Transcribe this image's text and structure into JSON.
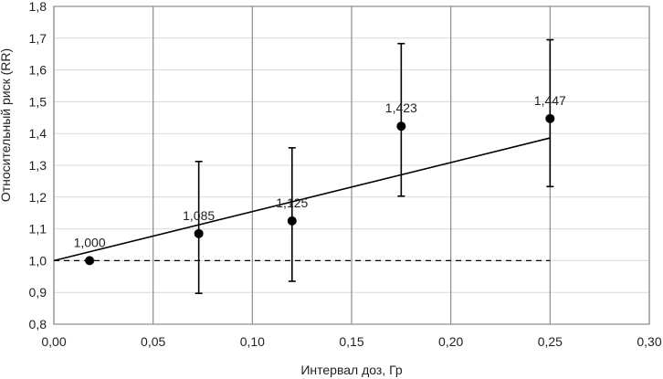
{
  "chart_data": {
    "type": "scatter",
    "xlabel": "Интервал доз, Гр",
    "ylabel": "Относительный риск (RR)",
    "xlim": [
      0.0,
      0.3
    ],
    "ylim": [
      0.8,
      1.8
    ],
    "x_ticks": [
      "0,00",
      "0,05",
      "0,10",
      "0,15",
      "0,20",
      "0,25",
      "0,30"
    ],
    "y_ticks": [
      "0,8",
      "0,9",
      "1,0",
      "1,1",
      "1,2",
      "1,3",
      "1,4",
      "1,5",
      "1,6",
      "1,7",
      "1,8"
    ],
    "grid": "vertical major + horizontal",
    "points": [
      {
        "x": 0.018,
        "y": 1.0,
        "label": "1,000",
        "err_low": null,
        "err_high": null
      },
      {
        "x": 0.073,
        "y": 1.085,
        "label": "1,085",
        "err_low": 0.897,
        "err_high": 1.312
      },
      {
        "x": 0.12,
        "y": 1.125,
        "label": "1,125",
        "err_low": 0.935,
        "err_high": 1.355
      },
      {
        "x": 0.175,
        "y": 1.423,
        "label": "1,423",
        "err_low": 1.203,
        "err_high": 1.683
      },
      {
        "x": 0.25,
        "y": 1.447,
        "label": "1,447",
        "err_low": 1.233,
        "err_high": 1.695
      }
    ],
    "trend_line": {
      "x": [
        0.0,
        0.25
      ],
      "y": [
        1.0,
        1.386
      ]
    },
    "reference_line": {
      "y": 1.0,
      "x": [
        0.0,
        0.25
      ],
      "style": "dashed"
    }
  }
}
